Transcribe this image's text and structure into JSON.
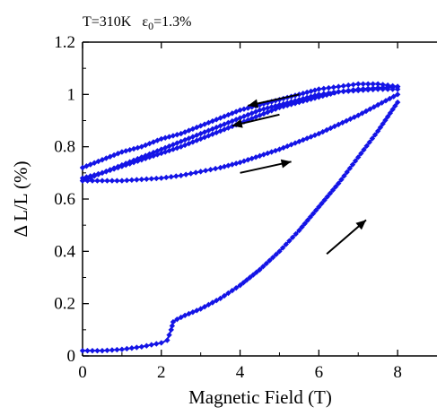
{
  "chart_data": {
    "type": "scatter",
    "annotation": {
      "temperature": "T=310K",
      "strain_symbol": "ε",
      "strain_subscript": "0",
      "strain_value": "=1.3%"
    },
    "xlabel": "Magnetic Field (T)",
    "ylabel": "Δ L/L (%)",
    "xlim": [
      0,
      9
    ],
    "ylim": [
      0,
      1.2
    ],
    "x_ticks": [
      "0",
      "2",
      "4",
      "6",
      "8"
    ],
    "y_ticks": [
      "0",
      "0.2",
      "0.4",
      "0.6",
      "0.8",
      "1",
      "1.2"
    ],
    "grid": false,
    "legend": "none",
    "series": [
      {
        "color": "#1414e6",
        "marker": "diamond",
        "x": [
          0,
          0.5,
          1,
          1.5,
          2,
          2.15,
          2.25,
          2.3,
          2.4,
          2.6,
          3,
          3.5,
          4,
          4.5,
          5,
          5.5,
          6,
          6.5,
          7,
          7.5,
          8
        ],
        "y": [
          0.02,
          0.02,
          0.025,
          0.035,
          0.05,
          0.06,
          0.1,
          0.13,
          0.14,
          0.155,
          0.18,
          0.22,
          0.27,
          0.33,
          0.4,
          0.48,
          0.57,
          0.66,
          0.76,
          0.86,
          0.97
        ]
      },
      {
        "color": "#1414e6",
        "marker": "diamond",
        "x": [
          8,
          7.5,
          7,
          6.5,
          6,
          5.5,
          5,
          4.5,
          4,
          3.5,
          3,
          2.5,
          2,
          1.5,
          1,
          0.5,
          0
        ],
        "y": [
          1.03,
          1.04,
          1.04,
          1.03,
          1.02,
          1.0,
          0.98,
          0.96,
          0.94,
          0.91,
          0.88,
          0.85,
          0.83,
          0.8,
          0.78,
          0.75,
          0.72
        ]
      },
      {
        "color": "#1414e6",
        "marker": "diamond",
        "x": [
          0,
          0.5,
          1,
          1.5,
          2,
          2.5,
          3,
          3.5,
          4,
          4.5,
          5,
          5.5,
          6,
          6.5,
          7,
          7.5,
          8
        ],
        "y": [
          0.67,
          0.67,
          0.67,
          0.675,
          0.68,
          0.69,
          0.705,
          0.72,
          0.74,
          0.765,
          0.79,
          0.82,
          0.85,
          0.885,
          0.92,
          0.96,
          1.0
        ]
      },
      {
        "color": "#1414e6",
        "marker": "diamond",
        "x": [
          8,
          7.5,
          7,
          6.5,
          6,
          5.5,
          5,
          4.5,
          4,
          3.5,
          3,
          2.5,
          2,
          1.5,
          1,
          0.5,
          0
        ],
        "y": [
          1.02,
          1.02,
          1.015,
          1.01,
          1.0,
          0.98,
          0.96,
          0.94,
          0.91,
          0.88,
          0.85,
          0.82,
          0.79,
          0.76,
          0.73,
          0.7,
          0.67
        ]
      },
      {
        "color": "#1414e6",
        "marker": "diamond",
        "x": [
          0,
          0.5,
          1,
          1.5,
          2,
          2.5,
          3,
          3.5,
          4,
          4.5,
          5,
          5.5,
          6,
          6.5,
          7,
          7.5,
          8
        ],
        "y": [
          0.68,
          0.7,
          0.725,
          0.75,
          0.775,
          0.8,
          0.83,
          0.86,
          0.89,
          0.92,
          0.95,
          0.97,
          0.99,
          1.01,
          1.02,
          1.025,
          1.03
        ]
      }
    ],
    "arrows": [
      {
        "from": [
          5.5,
          1.0
        ],
        "to": [
          4.2,
          0.957
        ],
        "direction": "left"
      },
      {
        "from": [
          5.0,
          0.923
        ],
        "to": [
          3.8,
          0.88
        ],
        "direction": "left"
      },
      {
        "from": [
          4.0,
          0.7
        ],
        "to": [
          5.3,
          0.743
        ],
        "direction": "right"
      },
      {
        "from": [
          6.2,
          0.39
        ],
        "to": [
          7.2,
          0.52
        ],
        "direction": "up-right"
      }
    ]
  }
}
